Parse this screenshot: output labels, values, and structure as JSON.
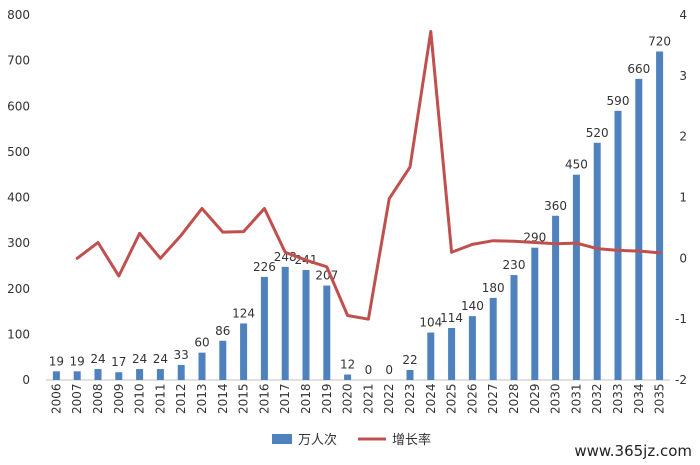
{
  "chart_data": {
    "type": "bar+line",
    "categories": [
      "2006",
      "2007",
      "2008",
      "2009",
      "2010",
      "2011",
      "2012",
      "2013",
      "2014",
      "2015",
      "2016",
      "2017",
      "2018",
      "2019",
      "2020",
      "2021",
      "2022",
      "2023",
      "2024",
      "2025",
      "2026",
      "2027",
      "2028",
      "2029",
      "2030",
      "2031",
      "2032",
      "2033",
      "2034",
      "2035"
    ],
    "series": [
      {
        "name": "万人次",
        "type": "bar",
        "axis": "left",
        "color": "#4f81bd",
        "values": [
          19,
          19,
          24,
          17,
          24,
          24,
          33,
          60,
          86,
          124,
          226,
          248,
          241,
          207,
          12,
          0,
          0,
          22,
          104,
          114,
          140,
          180,
          230,
          290,
          360,
          450,
          520,
          590,
          660,
          720
        ],
        "labels": [
          "19",
          "19",
          "24",
          "17",
          "24",
          "24",
          "33",
          "60",
          "86",
          "124",
          "226",
          "248",
          "241",
          "207",
          "12",
          "0",
          "0",
          "22",
          "104",
          "114",
          "140",
          "180",
          "230",
          "290",
          "360",
          "450",
          "520",
          "590",
          "660",
          "720"
        ]
      },
      {
        "name": "增长率",
        "type": "line",
        "axis": "right",
        "color": "#c0504d",
        "values": [
          null,
          0.0,
          0.26,
          -0.29,
          0.41,
          0.0,
          0.38,
          0.82,
          0.43,
          0.44,
          0.82,
          0.1,
          -0.03,
          -0.14,
          -0.94,
          -1.0,
          0.98,
          1.5,
          3.73,
          0.1,
          0.23,
          0.29,
          0.28,
          0.26,
          0.24,
          0.25,
          0.16,
          0.13,
          0.12,
          0.09
        ]
      }
    ],
    "y_left": {
      "min": 0,
      "max": 800,
      "ticks": [
        0,
        100,
        200,
        300,
        400,
        500,
        600,
        700,
        800
      ]
    },
    "y_right": {
      "min": -2,
      "max": 4,
      "ticks": [
        -2,
        -1,
        0,
        1,
        2,
        3,
        4
      ]
    },
    "legend_position": "bottom",
    "grid": false
  },
  "watermark": "www.365jz.com"
}
